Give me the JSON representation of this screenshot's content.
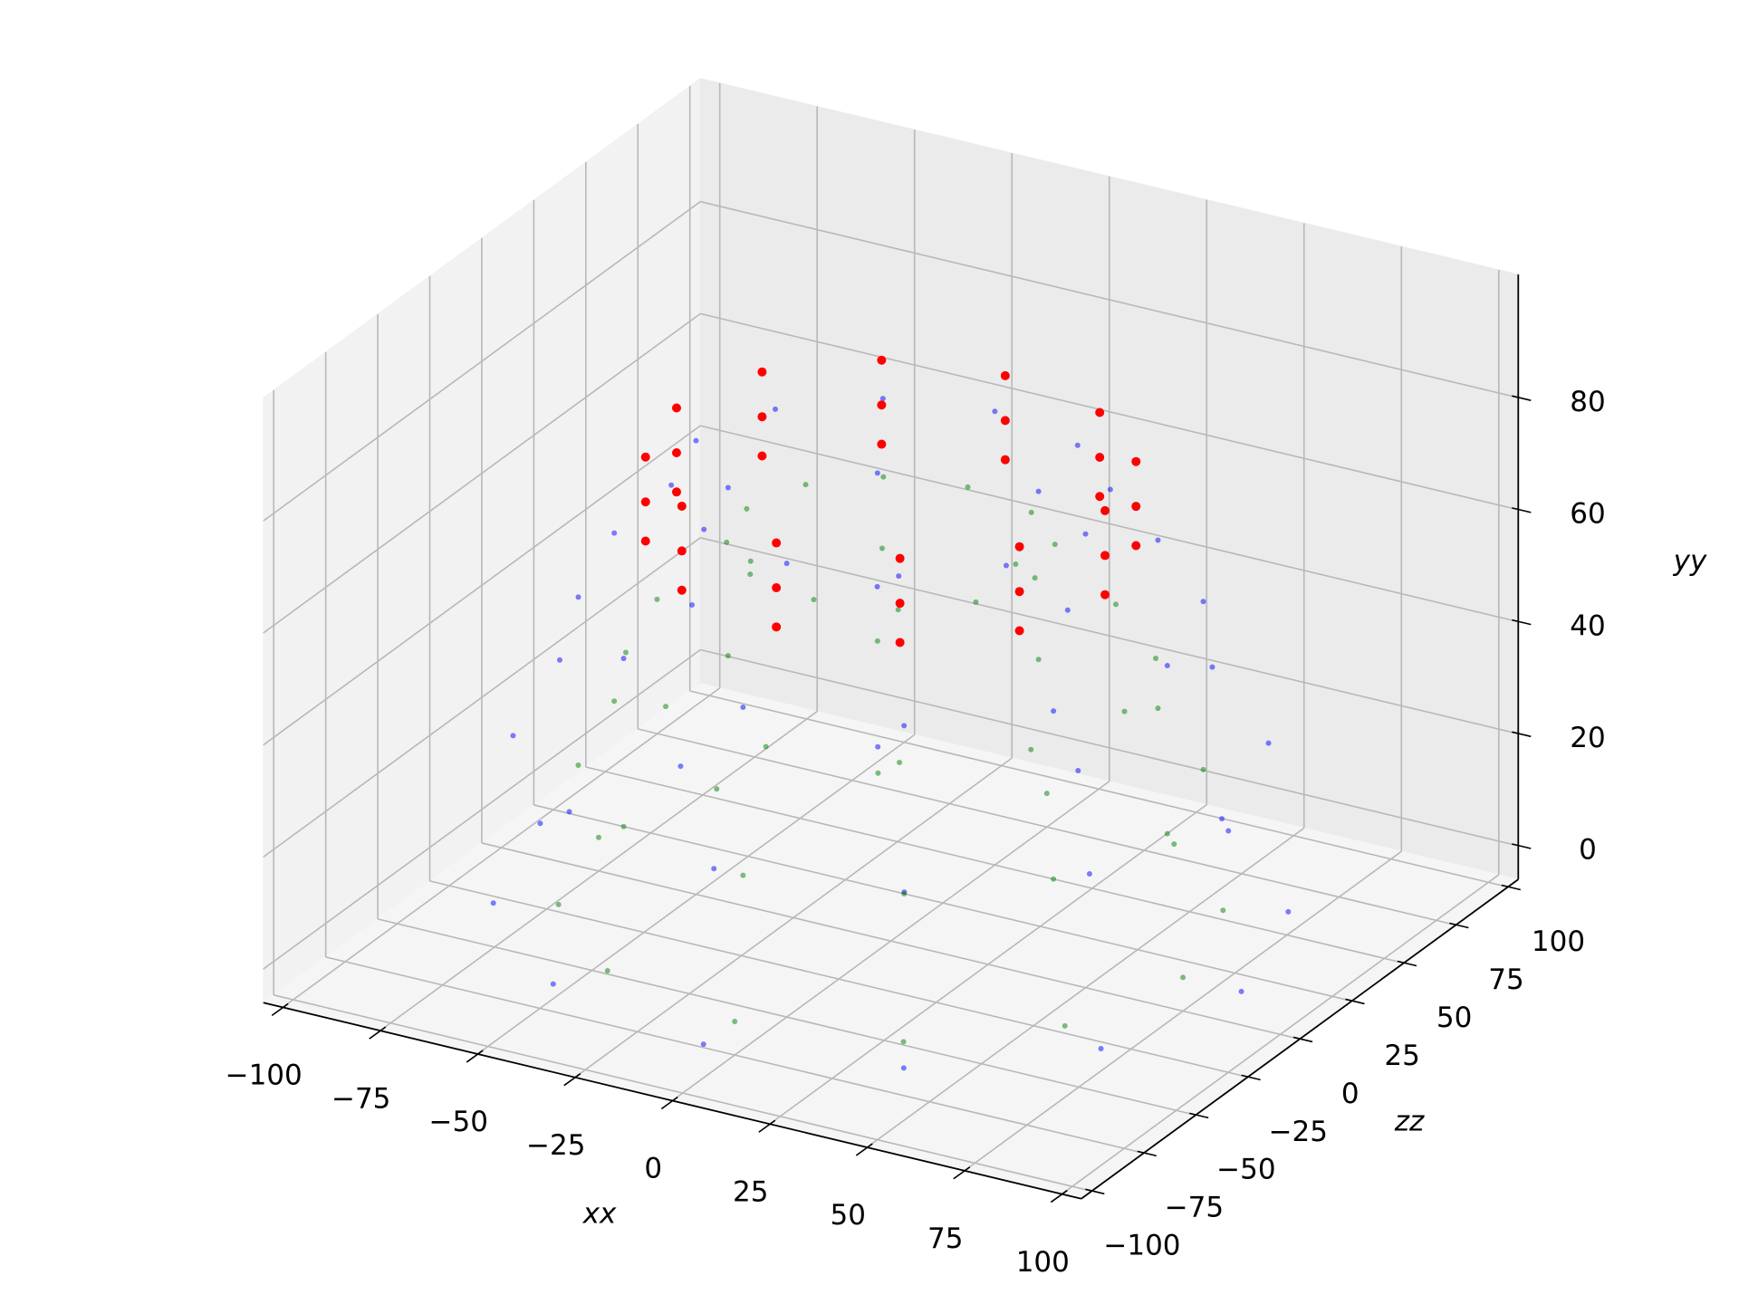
{
  "chart_data": {
    "type": "scatter3d",
    "xlabel": "xx",
    "ylabel": "yy",
    "zlabel": "zz",
    "xlim": [
      -105,
      105
    ],
    "zlim": [
      -105,
      105
    ],
    "ylim": [
      -6,
      102
    ],
    "xticks": [
      {
        "value": -100,
        "label": "−100"
      },
      {
        "value": -75,
        "label": "−75"
      },
      {
        "value": -50,
        "label": "−50"
      },
      {
        "value": -25,
        "label": "−25"
      },
      0,
      25,
      50,
      75,
      100
    ],
    "zticks": [
      {
        "value": -100,
        "label": "−100"
      },
      {
        "value": -75,
        "label": "−75"
      },
      {
        "value": -50,
        "label": "−50"
      },
      {
        "value": -25,
        "label": "−25"
      },
      0,
      25,
      50,
      75,
      100
    ],
    "yticks": [
      0,
      20,
      40,
      60,
      80
    ],
    "grid": true,
    "series": [
      {
        "color": "blue",
        "alpha": 0.5,
        "x": [
          90,
          78,
          45,
          0,
          -45,
          -78,
          -90,
          -78,
          -45,
          0,
          45,
          78,
          85,
          74,
          43,
          0,
          -43,
          -74,
          -85,
          -74,
          -43,
          0,
          43,
          74,
          71,
          61,
          36,
          0,
          -36,
          -61,
          -71,
          -61,
          -36,
          0,
          36,
          61,
          50,
          43,
          25,
          0,
          -25,
          -43,
          -50,
          -43,
          -25,
          0,
          25,
          43
        ],
        "y": [
          0,
          0,
          0,
          0,
          0,
          0,
          0,
          0,
          0,
          0,
          0,
          0,
          30,
          30,
          30,
          30,
          30,
          30,
          30,
          30,
          30,
          30,
          30,
          30,
          55,
          55,
          55,
          55,
          55,
          55,
          55,
          55,
          55,
          55,
          55,
          55,
          75,
          75,
          75,
          75,
          75,
          75,
          75,
          75,
          75,
          75,
          75,
          75
        ],
        "z": [
          0,
          45,
          78,
          90,
          78,
          45,
          0,
          -45,
          -78,
          -90,
          -78,
          -45,
          0,
          43,
          74,
          85,
          74,
          43,
          0,
          -43,
          -74,
          -85,
          -74,
          -43,
          0,
          36,
          61,
          71,
          61,
          36,
          0,
          -36,
          -61,
          -71,
          -61,
          -36,
          0,
          25,
          43,
          50,
          43,
          25,
          0,
          -25,
          -43,
          -50,
          -43,
          -25
        ]
      },
      {
        "color": "green",
        "alpha": 0.5,
        "x": [
          75,
          65,
          38,
          0,
          -38,
          -65,
          -75,
          -65,
          -38,
          0,
          38,
          65,
          71,
          61,
          36,
          0,
          -36,
          -61,
          -71,
          -61,
          -36,
          0,
          36,
          61,
          60,
          52,
          30,
          0,
          -30,
          -52,
          -60,
          -52,
          -30,
          0,
          30,
          52,
          37,
          32,
          19,
          0,
          -19,
          -32,
          -37,
          -32,
          -19,
          0,
          19,
          32
        ],
        "y": [
          0,
          0,
          0,
          0,
          0,
          0,
          0,
          0,
          0,
          0,
          0,
          0,
          25,
          25,
          25,
          25,
          25,
          25,
          25,
          25,
          25,
          25,
          25,
          25,
          45,
          45,
          45,
          45,
          45,
          45,
          45,
          45,
          45,
          45,
          45,
          45,
          65,
          65,
          65,
          65,
          65,
          65,
          65,
          65,
          65,
          65,
          65,
          65
        ],
        "z": [
          0,
          38,
          65,
          75,
          65,
          38,
          0,
          -38,
          -65,
          -75,
          -65,
          -38,
          0,
          36,
          61,
          71,
          61,
          36,
          0,
          -36,
          -61,
          -71,
          -61,
          -36,
          0,
          30,
          52,
          60,
          52,
          30,
          0,
          -30,
          -52,
          -60,
          -52,
          -30,
          0,
          19,
          32,
          37,
          32,
          19,
          0,
          -19,
          -32,
          -37,
          -32,
          -19
        ]
      },
      {
        "color": "red",
        "alpha": 1,
        "x": [
          55,
          48,
          28,
          0,
          -28,
          -48,
          -55,
          -48,
          -28,
          0,
          28,
          48,
          55,
          48,
          28,
          0,
          -28,
          -48,
          -55,
          -48,
          -28,
          0,
          28,
          48,
          55,
          48,
          28,
          0,
          -28,
          -48,
          -55,
          -48,
          -28,
          0,
          28,
          48
        ],
        "y": [
          65,
          65,
          65,
          65,
          65,
          65,
          65,
          65,
          65,
          65,
          65,
          65,
          72,
          72,
          72,
          72,
          72,
          72,
          72,
          72,
          72,
          72,
          72,
          72,
          80,
          80,
          80,
          80,
          80,
          80,
          80,
          80,
          80,
          80,
          80,
          80
        ],
        "z": [
          0,
          28,
          48,
          55,
          48,
          28,
          0,
          -28,
          -48,
          -55,
          -48,
          -28,
          0,
          28,
          48,
          55,
          48,
          28,
          0,
          -28,
          -48,
          -55,
          -48,
          -28,
          0,
          28,
          48,
          55,
          48,
          28,
          0,
          -28,
          -48,
          -55,
          -48,
          -28
        ]
      }
    ]
  }
}
